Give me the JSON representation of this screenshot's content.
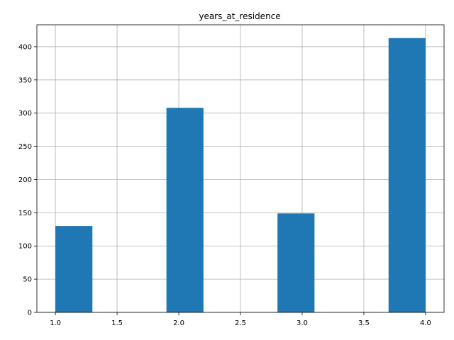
{
  "chart_data": {
    "type": "bar",
    "title": "years_at_residence",
    "xlabel": "",
    "ylabel": "",
    "xlim": [
      0.85,
      4.15
    ],
    "ylim": [
      0,
      433
    ],
    "grid": true,
    "bar_color": "#1f77b4",
    "bins": [
      {
        "x0": 1.0,
        "x1": 1.3,
        "count": 130
      },
      {
        "x0": 1.3,
        "x1": 1.6,
        "count": 0
      },
      {
        "x0": 1.6,
        "x1": 1.9,
        "count": 0
      },
      {
        "x0": 1.9,
        "x1": 2.2,
        "count": 308
      },
      {
        "x0": 2.2,
        "x1": 2.5,
        "count": 0
      },
      {
        "x0": 2.5,
        "x1": 2.8,
        "count": 0
      },
      {
        "x0": 2.8,
        "x1": 3.1,
        "count": 149
      },
      {
        "x0": 3.1,
        "x1": 3.4,
        "count": 0
      },
      {
        "x0": 3.4,
        "x1": 3.7,
        "count": 0
      },
      {
        "x0": 3.7,
        "x1": 4.0,
        "count": 413
      }
    ],
    "x_ticks": [
      {
        "value": 1.0,
        "label": "1.0"
      },
      {
        "value": 1.5,
        "label": "1.5"
      },
      {
        "value": 2.0,
        "label": "2.0"
      },
      {
        "value": 2.5,
        "label": "2.5"
      },
      {
        "value": 3.0,
        "label": "3.0"
      },
      {
        "value": 3.5,
        "label": "3.5"
      },
      {
        "value": 4.0,
        "label": "4.0"
      }
    ],
    "y_ticks": [
      {
        "value": 0,
        "label": "0"
      },
      {
        "value": 50,
        "label": "50"
      },
      {
        "value": 100,
        "label": "100"
      },
      {
        "value": 150,
        "label": "150"
      },
      {
        "value": 200,
        "label": "200"
      },
      {
        "value": 250,
        "label": "250"
      },
      {
        "value": 300,
        "label": "300"
      },
      {
        "value": 350,
        "label": "350"
      },
      {
        "value": 400,
        "label": "400"
      }
    ]
  }
}
